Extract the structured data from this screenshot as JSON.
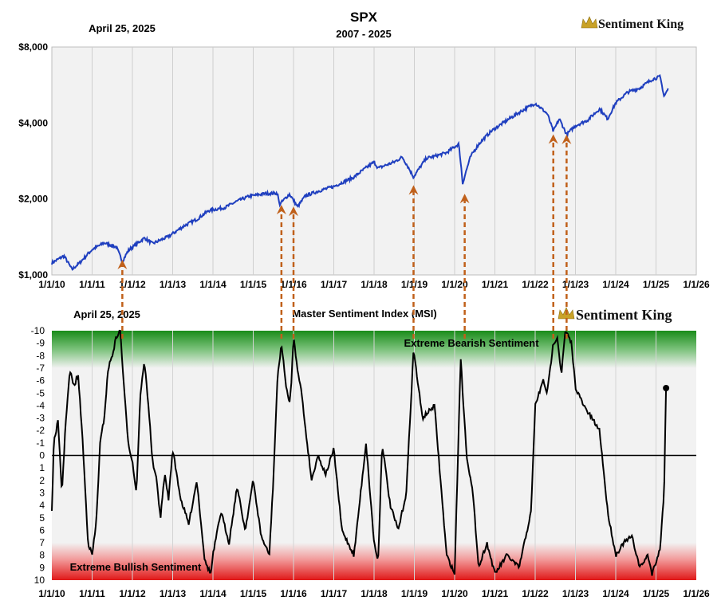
{
  "top_chart": {
    "title": "SPX",
    "subtitle": "2007 - 2025",
    "date": "April 25, 2025",
    "brand": "Sentiment King"
  },
  "bottom_chart": {
    "title": "Master Sentiment Index (MSI)",
    "date": "April 25, 2025",
    "brand": "Sentiment King",
    "bearish_label": "Extreme Bearish Sentiment",
    "bullish_label": "Extreme Bullish Sentiment"
  },
  "colors": {
    "spx_line": "#1f3fbf",
    "msi_line": "#000000",
    "arrow": "#c0601a",
    "bearish_band": "#1a8c1a",
    "bullish_band": "#e01818",
    "plot_bg": "#f2f2f2",
    "grid": "#c8c8c8",
    "logo_crown": "#c9a227"
  },
  "chart_data": [
    {
      "type": "line",
      "title": "SPX",
      "subtitle": "2007 - 2025",
      "xlabel": "",
      "ylabel": "",
      "y_scale": "log",
      "ylim": [
        1000,
        8000
      ],
      "y_ticks": [
        1000,
        2000,
        4000,
        8000
      ],
      "y_tick_labels": [
        "$1,000",
        "$2,000",
        "$4,000",
        "$8,000"
      ],
      "x_tick_labels": [
        "1/1/10",
        "1/1/11",
        "1/1/12",
        "1/1/13",
        "1/1/14",
        "1/1/15",
        "1/1/16",
        "1/1/17",
        "1/1/18",
        "1/1/19",
        "1/1/20",
        "1/1/21",
        "1/1/22",
        "1/1/23",
        "1/1/24",
        "1/1/25",
        "1/1/26"
      ],
      "grid": true,
      "series": [
        {
          "x": [
            2010.0,
            2010.3,
            2010.5,
            2010.7,
            2011.0,
            2011.3,
            2011.6,
            2011.75,
            2011.9,
            2012.3,
            2012.5,
            2012.9,
            2013.3,
            2013.6,
            2013.9,
            2014.3,
            2014.6,
            2014.9,
            2015.3,
            2015.6,
            2015.65,
            2015.9,
            2016.1,
            2016.3,
            2016.7,
            2017.0,
            2017.5,
            2018.0,
            2018.1,
            2018.5,
            2018.7,
            2018.98,
            2019.3,
            2019.5,
            2019.8,
            2020.1,
            2020.2,
            2020.4,
            2020.6,
            2020.9,
            2021.3,
            2021.6,
            2022.0,
            2022.3,
            2022.45,
            2022.6,
            2022.78,
            2023.0,
            2023.3,
            2023.6,
            2023.8,
            2024.0,
            2024.3,
            2024.6,
            2024.9,
            2025.1,
            2025.2,
            2025.3
          ],
          "y": [
            1115,
            1190,
            1050,
            1120,
            1260,
            1340,
            1290,
            1130,
            1250,
            1400,
            1330,
            1420,
            1570,
            1660,
            1800,
            1850,
            1960,
            2050,
            2100,
            2110,
            1900,
            2090,
            1860,
            2060,
            2170,
            2240,
            2440,
            2800,
            2650,
            2800,
            2930,
            2440,
            2900,
            2950,
            3050,
            3300,
            2300,
            2950,
            3300,
            3700,
            4100,
            4400,
            4790,
            4350,
            3700,
            4150,
            3600,
            3900,
            4100,
            4550,
            4150,
            4800,
            5300,
            5500,
            5950,
            6100,
            5100,
            5450
          ]
        }
      ]
    },
    {
      "type": "line",
      "title": "Master Sentiment Index (MSI)",
      "xlabel": "",
      "ylabel": "",
      "ylim": [
        -10,
        10
      ],
      "y_axis_inverted": true,
      "y_tick_labels": [
        "-10",
        "-9",
        "-8",
        "-7",
        "-6",
        "-5",
        "-4",
        "-3",
        "-2",
        "-1",
        "0",
        "1",
        "2",
        "3",
        "4",
        "5",
        "6",
        "7",
        "8",
        "9",
        "10"
      ],
      "x_tick_labels": [
        "1/1/10",
        "1/1/11",
        "1/1/12",
        "1/1/13",
        "1/1/14",
        "1/1/15",
        "1/1/16",
        "1/1/17",
        "1/1/18",
        "1/1/19",
        "1/1/20",
        "1/1/21",
        "1/1/22",
        "1/1/23",
        "1/1/24",
        "1/1/25",
        "1/1/26"
      ],
      "annotations": [
        "Extreme Bearish Sentiment",
        "Extreme Bullish Sentiment"
      ],
      "grid": true,
      "series": [
        {
          "x": [
            2010.0,
            2010.05,
            2010.15,
            2010.25,
            2010.35,
            2010.45,
            2010.55,
            2010.65,
            2010.75,
            2010.9,
            2011.0,
            2011.1,
            2011.2,
            2011.3,
            2011.4,
            2011.5,
            2011.6,
            2011.7,
            2011.8,
            2011.9,
            2012.0,
            2012.1,
            2012.2,
            2012.3,
            2012.4,
            2012.5,
            2012.6,
            2012.7,
            2012.8,
            2012.9,
            2013.0,
            2013.2,
            2013.4,
            2013.6,
            2013.8,
            2013.95,
            2014.0,
            2014.2,
            2014.4,
            2014.6,
            2014.8,
            2015.0,
            2015.2,
            2015.4,
            2015.5,
            2015.6,
            2015.7,
            2015.8,
            2015.9,
            2015.95,
            2016.0,
            2016.1,
            2016.2,
            2016.3,
            2016.45,
            2016.6,
            2016.8,
            2017.0,
            2017.2,
            2017.5,
            2017.8,
            2018.0,
            2018.1,
            2018.2,
            2018.4,
            2018.6,
            2018.8,
            2018.98,
            2019.2,
            2019.5,
            2019.8,
            2020.0,
            2020.1,
            2020.15,
            2020.2,
            2020.3,
            2020.45,
            2020.6,
            2020.8,
            2021.0,
            2021.3,
            2021.6,
            2021.9,
            2022.0,
            2022.2,
            2022.3,
            2022.45,
            2022.55,
            2022.65,
            2022.75,
            2022.9,
            2023.0,
            2023.2,
            2023.4,
            2023.6,
            2023.8,
            2024.0,
            2024.2,
            2024.4,
            2024.6,
            2024.8,
            2024.9,
            2025.0,
            2025.1,
            2025.2,
            2025.25
          ],
          "y": [
            4.5,
            -1.0,
            -2.8,
            3.0,
            -3.0,
            -6.8,
            -5.5,
            -6.5,
            -2.0,
            7.0,
            8.0,
            5.5,
            -1.0,
            -3.0,
            -7.0,
            -8.0,
            -9.5,
            -10.0,
            -5.0,
            -1.0,
            0.5,
            3.0,
            -5.0,
            -7.5,
            -4.0,
            0.5,
            2.0,
            5.0,
            1.5,
            3.5,
            -0.5,
            3.5,
            5.5,
            2.0,
            8.5,
            9.5,
            8.0,
            4.5,
            7.0,
            2.5,
            6.0,
            2.0,
            6.5,
            8.0,
            2.0,
            -6.0,
            -9.0,
            -6.0,
            -4.0,
            -6.0,
            -9.5,
            -7.0,
            -5.0,
            -2.0,
            2.0,
            0.0,
            1.5,
            -0.5,
            6.0,
            8.0,
            -1.0,
            7.0,
            8.5,
            -1.0,
            4.0,
            6.0,
            3.0,
            -8.5,
            -3.0,
            -4.0,
            8.0,
            9.5,
            -2.0,
            -8.0,
            -5.0,
            0.0,
            3.0,
            9.0,
            7.0,
            9.5,
            8.0,
            9.0,
            4.5,
            -4.0,
            -6.0,
            -5.0,
            -9.0,
            -9.5,
            -6.5,
            -10.0,
            -9.0,
            -5.5,
            -4.0,
            -3.0,
            -2.0,
            4.5,
            8.0,
            7.0,
            6.5,
            9.0,
            8.0,
            9.5,
            8.5,
            7.5,
            3.0,
            -5.4
          ]
        }
      ]
    }
  ]
}
